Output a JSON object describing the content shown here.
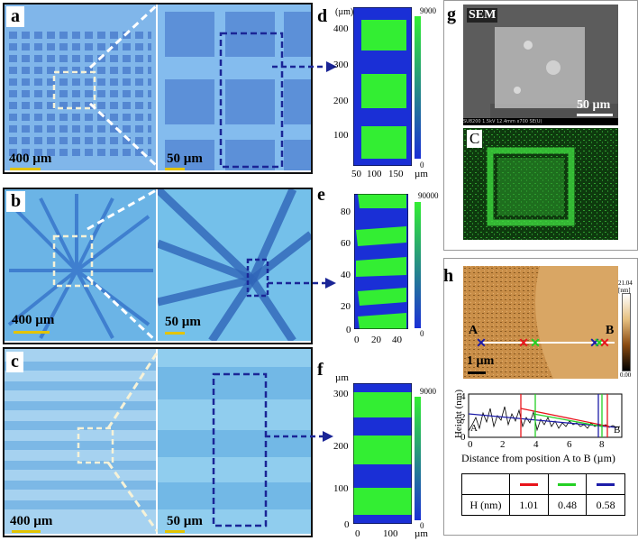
{
  "panels": {
    "a": {
      "label": "a",
      "scale_left": "400 µm",
      "scale_right": "50 µm"
    },
    "b": {
      "label": "b",
      "scale_left": "400 µm",
      "scale_right": "50 µm"
    },
    "c": {
      "label": "c",
      "scale_left": "400 µm",
      "scale_right": "50 µm"
    },
    "d": {
      "label": "d",
      "unit_top": "(µm)",
      "x_ticks": [
        "50",
        "100",
        "150"
      ],
      "y_ticks": [
        "400",
        "300",
        "200",
        "100"
      ],
      "unit_right": "µm",
      "cb_max": "9000",
      "cb_min": "0"
    },
    "e": {
      "label": "e",
      "x_ticks": [
        "0",
        "20",
        "40"
      ],
      "y_ticks": [
        "80",
        "60",
        "40",
        "20",
        "0"
      ],
      "cb_max": "90000",
      "cb_min": "0"
    },
    "f": {
      "label": "f",
      "unit_top": "µm",
      "x_ticks": [
        "0",
        "100"
      ],
      "y_ticks": [
        "300",
        "200",
        "100",
        "0"
      ],
      "unit_right": "µm",
      "cb_max": "9000",
      "cb_min": "0"
    },
    "g": {
      "label": "g",
      "sem_label": "SEM",
      "scale_text": "50 µm",
      "info_bar": "SU8200 1.5kV 12.4mm x700 SE(U)",
      "map_label": "C"
    },
    "h": {
      "label": "h",
      "marker_a": "A",
      "marker_b": "B",
      "scale_text": "1 µm",
      "cb_max": "21.04",
      "cb_unit": "[nm]",
      "cb_min": "0.00",
      "profile": {
        "ylabel": "Height (nm)",
        "xlabel": "Distance from position A to B (µm)",
        "x_ticks": [
          "0",
          "2",
          "4",
          "6",
          "8"
        ],
        "y_ticks": [
          "4",
          "2",
          "0"
        ],
        "label_a": "A",
        "label_b": "B"
      },
      "table": {
        "row_label": "H (nm)",
        "values": [
          "1.01",
          "0.48",
          "0.58"
        ],
        "colors": [
          "#e8141b",
          "#24d024",
          "#1c1ca8"
        ]
      }
    }
  },
  "colors": {
    "micro_bg": "#7fb3e8",
    "pad": "#5c8fd6",
    "map_green": "#33ee33",
    "map_blue": "#1a2fd6",
    "dash_white": "#ffffff",
    "dash_blue": "#1a2596"
  }
}
